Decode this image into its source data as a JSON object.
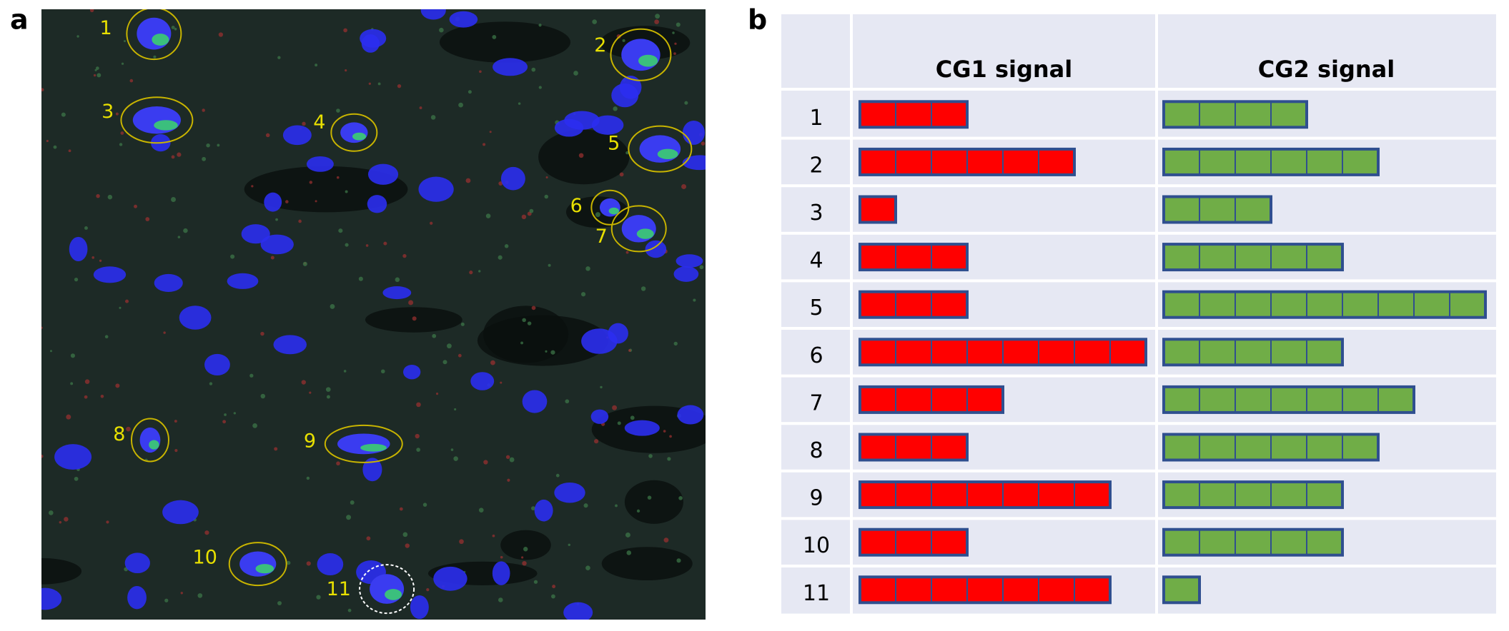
{
  "panel_a": {
    "label": "a",
    "cell_labels": [
      "1",
      "2",
      "3",
      "4",
      "5",
      "6",
      "7",
      "8",
      "9",
      "10",
      "11"
    ]
  },
  "panel_b": {
    "label": "b",
    "table": {
      "headers": [
        "CG1 signal",
        "CG2 signal"
      ],
      "rows": [
        {
          "label": "1",
          "cg1": 3,
          "cg2": 4
        },
        {
          "label": "2",
          "cg1": 6,
          "cg2": 6
        },
        {
          "label": "3",
          "cg1": 1,
          "cg2": 3
        },
        {
          "label": "4",
          "cg1": 3,
          "cg2": 5
        },
        {
          "label": "5",
          "cg1": 3,
          "cg2": 9
        },
        {
          "label": "6",
          "cg1": 8,
          "cg2": 5
        },
        {
          "label": "7",
          "cg1": 4,
          "cg2": 7
        },
        {
          "label": "8",
          "cg1": 3,
          "cg2": 6
        },
        {
          "label": "9",
          "cg1": 7,
          "cg2": 5
        },
        {
          "label": "10",
          "cg1": 3,
          "cg2": 5
        },
        {
          "label": "11",
          "cg1": 7,
          "cg2": 1
        }
      ]
    }
  }
}
